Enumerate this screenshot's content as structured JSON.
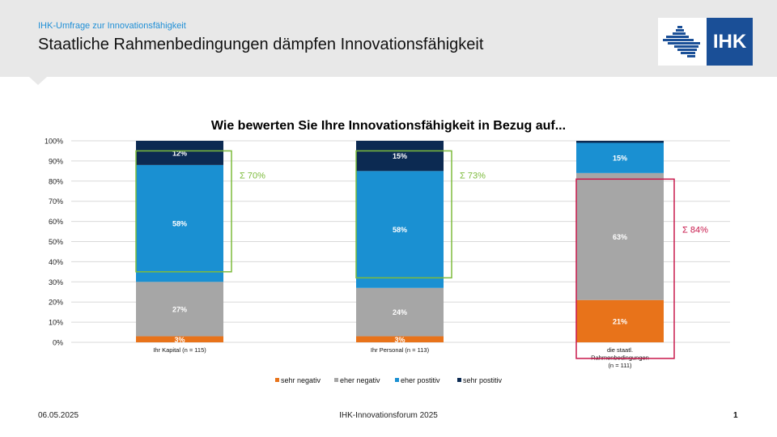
{
  "header": {
    "subtitle": "IHK-Umfrage zur Innovationsfähigkeit",
    "title": "Staatliche Rahmenbedingungen dämpfen Innovationsfähigkeit",
    "logo_text": "IHK"
  },
  "footer": {
    "date": "06.05.2025",
    "center": "IHK-Innovationsforum 2025",
    "page": "1"
  },
  "colors": {
    "sehr_negativ": "#e8731a",
    "eher_negativ": "#a6a6a6",
    "eher_positiv": "#1a90d2",
    "sehr_positiv": "#0c2a52",
    "green_box": "#7dbb3c",
    "red_box": "#c8184b"
  },
  "chart_data": {
    "type": "bar",
    "stacked": true,
    "title": "Wie bewerten Sie Ihre Innovationsfähigkeit in Bezug auf...",
    "categories": [
      [
        "Ihr Kapital (n = 115)"
      ],
      [
        "Ihr Personal (n = 113)"
      ],
      [
        "die staatl.",
        "Rahmenbedingungen",
        "(n = 111)"
      ]
    ],
    "series": [
      {
        "name": "sehr negativ",
        "values": [
          3,
          3,
          21
        ],
        "labels": [
          "3%",
          "3%",
          "21%"
        ]
      },
      {
        "name": "eher negativ",
        "values": [
          27,
          24,
          63
        ],
        "labels": [
          "27%",
          "24%",
          "63%"
        ]
      },
      {
        "name": "eher postitiv",
        "values": [
          58,
          58,
          15
        ],
        "labels": [
          "58%",
          "58%",
          "15%"
        ]
      },
      {
        "name": "sehr postitiv",
        "values": [
          12,
          15,
          1
        ],
        "labels": [
          "12%",
          "15%",
          ""
        ]
      }
    ],
    "ylim": [
      0,
      100
    ],
    "yticks": [
      "0%",
      "10%",
      "20%",
      "30%",
      "40%",
      "50%",
      "60%",
      "70%",
      "80%",
      "90%",
      "100%"
    ],
    "grid": true,
    "legend": "bottom",
    "annotations": [
      {
        "text": "Σ 70%",
        "category": 0,
        "range": [
          35,
          95
        ],
        "color": "green"
      },
      {
        "text": "Σ 73%",
        "category": 1,
        "range": [
          32,
          95
        ],
        "color": "green"
      },
      {
        "text": "Σ 84%",
        "category": 2,
        "range": [
          -8,
          81
        ],
        "color": "red"
      }
    ]
  }
}
